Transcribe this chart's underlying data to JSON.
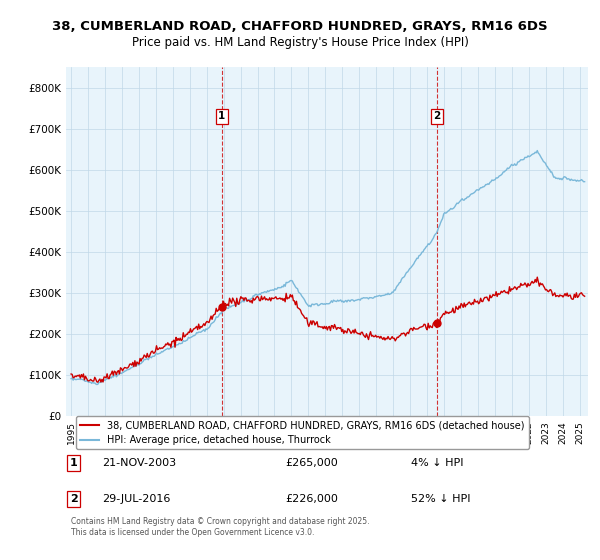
{
  "title_line1": "38, CUMBERLAND ROAD, CHAFFORD HUNDRED, GRAYS, RM16 6DS",
  "title_line2": "Price paid vs. HM Land Registry's House Price Index (HPI)",
  "ylim": [
    0,
    850000
  ],
  "yticks": [
    0,
    100000,
    200000,
    300000,
    400000,
    500000,
    600000,
    700000,
    800000
  ],
  "ytick_labels": [
    "£0",
    "£100K",
    "£200K",
    "£300K",
    "£400K",
    "£500K",
    "£600K",
    "£700K",
    "£800K"
  ],
  "sale1_year": 2003.89,
  "sale1_price": 265000,
  "sale2_year": 2016.58,
  "sale2_price": 226000,
  "legend_red_label": "38, CUMBERLAND ROAD, CHAFFORD HUNDRED, GRAYS, RM16 6DS (detached house)",
  "legend_blue_label": "HPI: Average price, detached house, Thurrock",
  "footer": "Contains HM Land Registry data © Crown copyright and database right 2025.\nThis data is licensed under the Open Government Licence v3.0.",
  "red_color": "#cc0000",
  "blue_color": "#7ab8d9",
  "bg_color": "#ffffff",
  "chart_bg": "#e8f4fb",
  "grid_color": "#c0d8e8"
}
